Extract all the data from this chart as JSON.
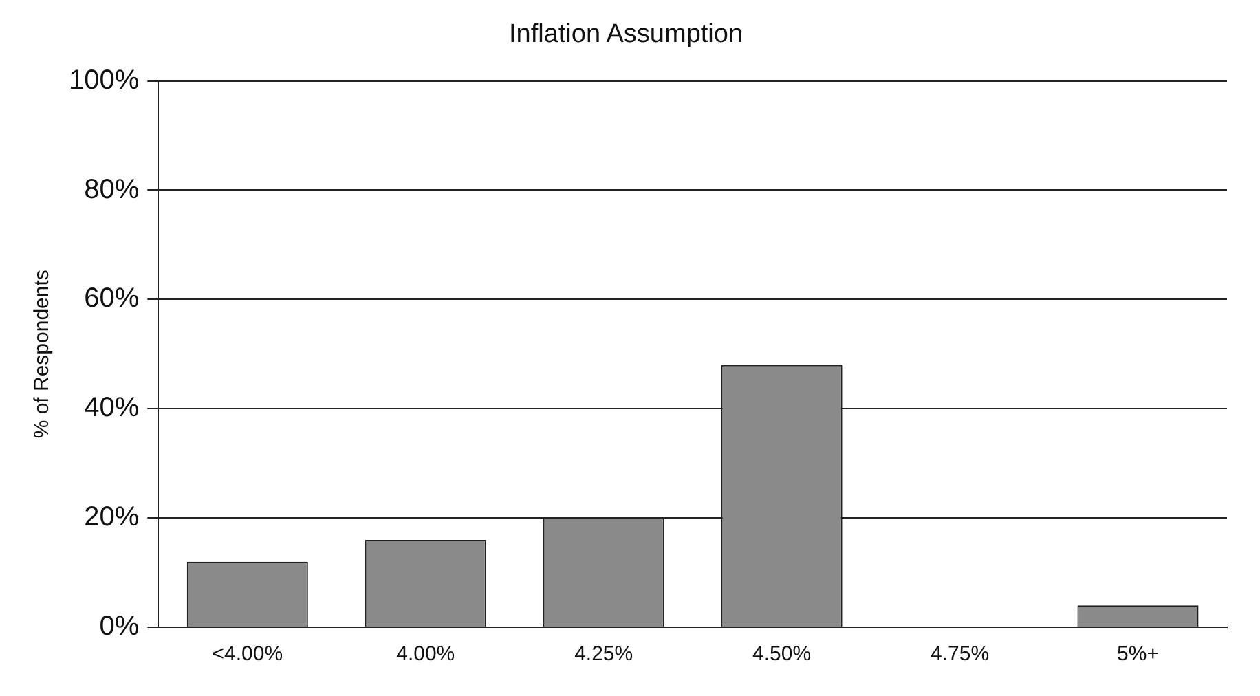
{
  "chart_data": {
    "type": "bar",
    "title": "Inflation Assumption",
    "ylabel": "% of Respondents",
    "categories": [
      "<4.00%",
      "4.00%",
      "4.25%",
      "4.50%",
      "4.75%",
      "5%+"
    ],
    "values": [
      12,
      16,
      20,
      48,
      0,
      4
    ],
    "color": "#8a8a8a",
    "ylim": [
      0,
      100
    ],
    "yticks": [
      {
        "value": 0,
        "label": "0%"
      },
      {
        "value": 20,
        "label": "20%"
      },
      {
        "value": 40,
        "label": "40%"
      },
      {
        "value": 60,
        "label": "60%"
      },
      {
        "value": 80,
        "label": "80%"
      },
      {
        "value": 100,
        "label": "100%"
      }
    ],
    "grid": "y",
    "legend": false
  }
}
